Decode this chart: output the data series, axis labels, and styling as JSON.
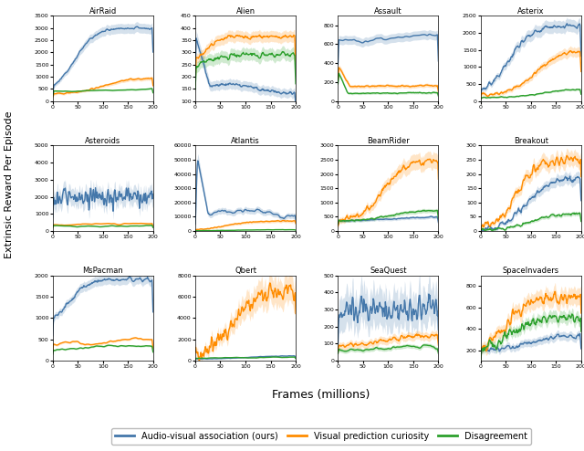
{
  "games": [
    "AirRaid",
    "Alien",
    "Assault",
    "Asterix",
    "Asteroids",
    "Atlantis",
    "BeamRider",
    "Breakout",
    "MsPacman",
    "Qbert",
    "SeaQuest",
    "SpaceInvaders"
  ],
  "colors": {
    "blue": "#4477aa",
    "orange": "#ff8c00",
    "green": "#2ca02c"
  },
  "legend_labels": [
    "Audio-visual association (ours)",
    "Visual prediction curiosity",
    "Disagreement"
  ],
  "xlabel": "Frames (millions)",
  "ylabel": "Extrinsic Reward Per Episode",
  "ylims": {
    "AirRaid": [
      0,
      3500
    ],
    "Alien": [
      100,
      450
    ],
    "Assault": [
      0,
      900
    ],
    "Asterix": [
      0,
      2500
    ],
    "Asteroids": [
      0,
      5000
    ],
    "Atlantis": [
      0,
      60000
    ],
    "BeamRider": [
      0,
      3000
    ],
    "Breakout": [
      0,
      300
    ],
    "MsPacman": [
      0,
      2000
    ],
    "Qbert": [
      0,
      8000
    ],
    "SeaQuest": [
      0,
      500
    ],
    "SpaceInvaders": [
      100,
      900
    ]
  }
}
